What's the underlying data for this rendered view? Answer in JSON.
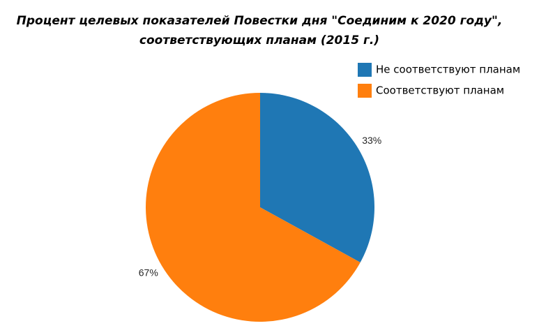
{
  "chart_data": {
    "type": "pie",
    "title": [
      "Процент целевых показателей Повестки дня \"Соединим к 2020 году\",",
      "соответствующих планам (2015 г.)"
    ],
    "categories": [
      "Не соответствуют планам",
      "Соответствуют планам"
    ],
    "values": [
      33,
      67
    ],
    "value_labels": [
      "33%",
      "67%"
    ],
    "colors": [
      "#1f77b4",
      "#ff7f0e"
    ],
    "legend": "upper right"
  }
}
